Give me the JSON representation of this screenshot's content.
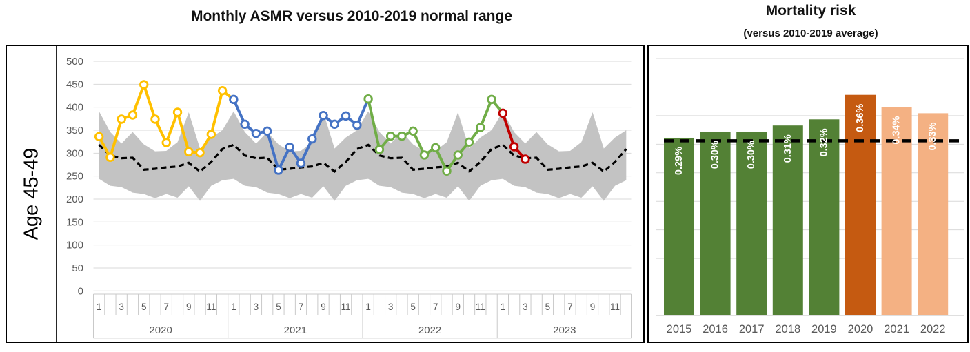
{
  "chart_data": [
    {
      "type": "line",
      "panel": "left",
      "title": "Monthly ASMR versus 2010-2019 normal range",
      "row_label": "Age 45-49",
      "ylim": [
        0,
        500
      ],
      "y_tick_step": 50,
      "y_tick_labels": [
        "500",
        "450",
        "400",
        "350",
        "300",
        "250",
        "200",
        "150",
        "100",
        "50",
        "0"
      ],
      "x_years": [
        "2020",
        "2021",
        "2022",
        "2023"
      ],
      "month_tick_labels": [
        "1",
        "3",
        "5",
        "7",
        "9",
        "11"
      ],
      "series": [
        {
          "name": "2020",
          "color": "#FFC000",
          "months": [
            336,
            291,
            374,
            383,
            449,
            374,
            323,
            389,
            303,
            301,
            341,
            436
          ]
        },
        {
          "name": "2021",
          "color": "#4472C4",
          "months": [
            417,
            363,
            343,
            348,
            263,
            313,
            278,
            331,
            382,
            363,
            381,
            361
          ]
        },
        {
          "name": "2022",
          "color": "#70AD47",
          "months": [
            418,
            308,
            337,
            337,
            348,
            296,
            312,
            261,
            296,
            324,
            356,
            417
          ]
        },
        {
          "name": "2023",
          "color": "#C00000",
          "months": [
            387,
            314,
            287
          ]
        }
      ],
      "normal_range_2010_2019": {
        "color": "#C3C3C3",
        "repeats_each_year": true,
        "upper": [
          391,
          346,
          321,
          346,
          319,
          304,
          305,
          324,
          389,
          310,
          334,
          350
        ],
        "lower": [
          244,
          229,
          226,
          214,
          211,
          202,
          211,
          203,
          228,
          196,
          229,
          241
        ]
      },
      "average_2010_2019": {
        "style": "dashed",
        "color": "#000000",
        "repeats_each_year": true,
        "values": [
          318,
          295,
          289,
          290,
          264,
          266,
          269,
          271,
          279,
          260,
          281,
          309
        ]
      },
      "grid": true,
      "legend": false
    },
    {
      "type": "bar",
      "panel": "right",
      "title": "Mortality risk",
      "subtitle": "(versus 2010-2019 average)",
      "categories": [
        "2015",
        "2016",
        "2017",
        "2018",
        "2019",
        "2020",
        "2021",
        "2022"
      ],
      "values_pct": [
        0.29,
        0.3,
        0.3,
        0.31,
        0.32,
        0.36,
        0.34,
        0.33
      ],
      "bar_labels": [
        "0.29%",
        "0.30%",
        "0.30%",
        "0.31%",
        "0.32%",
        "0.36%",
        "0.34%",
        "0.33%"
      ],
      "bar_colors": [
        "#538135",
        "#538135",
        "#538135",
        "#538135",
        "#538135",
        "#C55A11",
        "#F4B183",
        "#F4B183"
      ],
      "label_color": "#FFFFFF",
      "reference_line": {
        "style": "dashed",
        "color": "#000000",
        "value_pct": 0.285
      },
      "ylim_pct": [
        0,
        0.42
      ],
      "grid": true,
      "legend": false
    }
  ],
  "styles": {
    "axis_text_color": "#595959",
    "gridline_color": "#D9D9D9",
    "axis_table_line_color": "#C9C9C9",
    "panel_border_color": "#000000",
    "background": "#FFFFFF"
  }
}
